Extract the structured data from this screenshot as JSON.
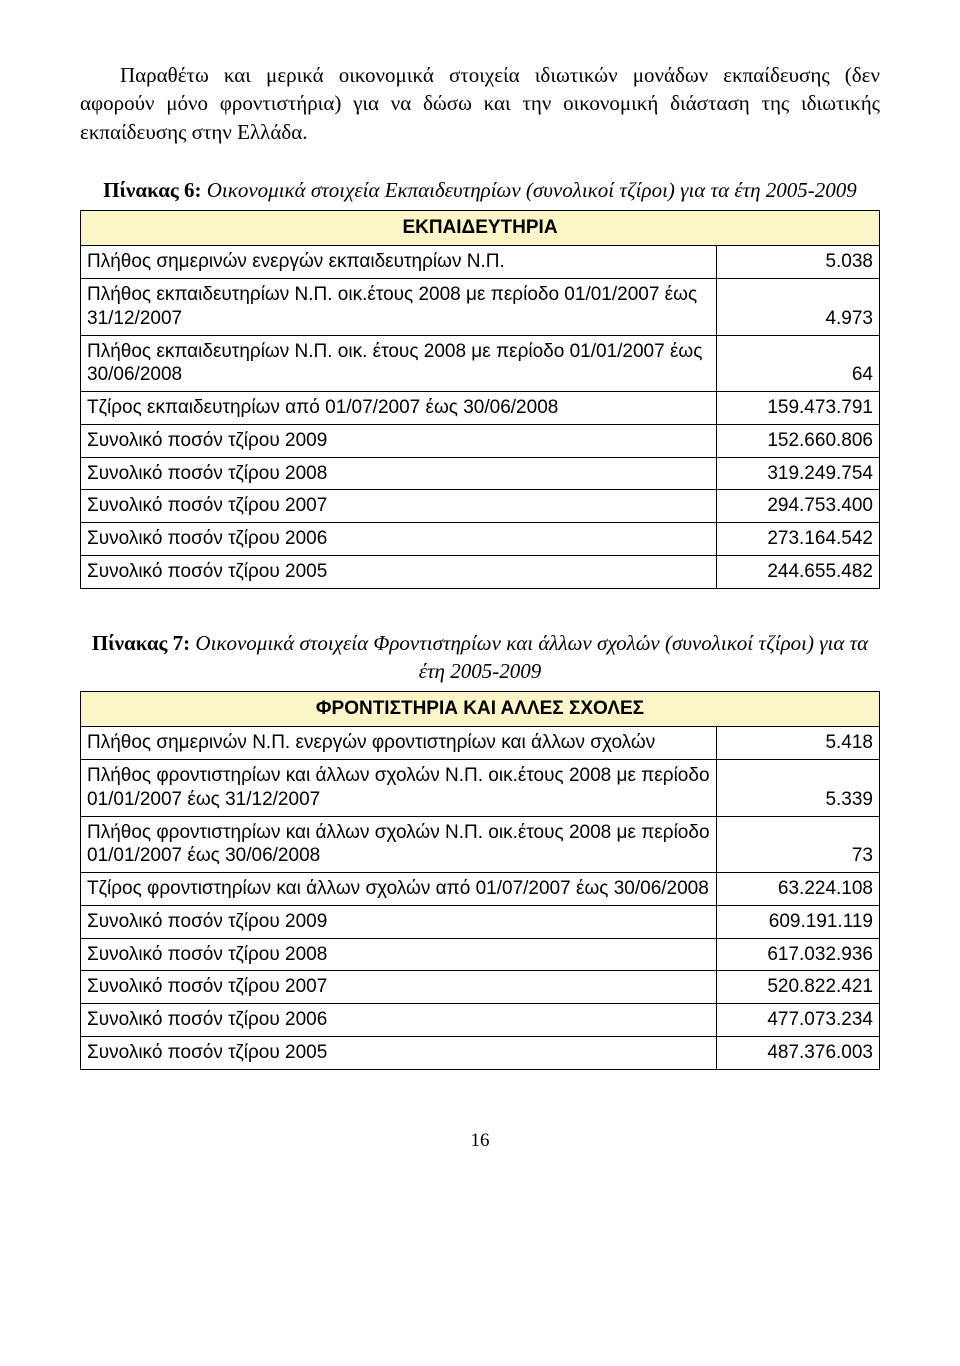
{
  "intro": "Παραθέτω και μερικά οικονομικά στοιχεία ιδιωτικών μονάδων εκπαίδευσης (δεν αφορούν μόνο φροντιστήρια) για να δώσω και την οικονομική διάσταση της ιδιωτικής εκπαίδευσης στην Ελλάδα.",
  "table6": {
    "caption_label": "Πίνακας 6:",
    "caption_rest": " Οικονομικά στοιχεία Εκπαιδευτηρίων (συνολικοί τζίροι) για τα έτη 2005-2009",
    "header": "ΕΚΠΑΙΔΕΥΤΗΡΙΑ",
    "header_bg": "#faf6c8",
    "rows": [
      {
        "label": "Πλήθος σημερινών ενεργών εκπαιδευτηρίων Ν.Π.",
        "value": "5.038"
      },
      {
        "label": "Πλήθος εκπαιδευτηρίων Ν.Π. οικ.έτους 2008 με περίοδο 01/01/2007 έως 31/12/2007",
        "value": "4.973"
      },
      {
        "label": "Πλήθος εκπαιδευτηρίων Ν.Π. οικ. έτους 2008 με περίοδο 01/01/2007 έως 30/06/2008",
        "value": "64"
      },
      {
        "label": "Τζίρος εκπαιδευτηρίων από 01/07/2007 έως 30/06/2008",
        "value": "159.473.791"
      },
      {
        "label": "Συνολικό ποσόν τζίρου 2009",
        "value": "152.660.806"
      },
      {
        "label": "Συνολικό ποσόν τζίρου 2008",
        "value": "319.249.754"
      },
      {
        "label": "Συνολικό ποσόν τζίρου 2007",
        "value": "294.753.400"
      },
      {
        "label": "Συνολικό ποσόν τζίρου 2006",
        "value": "273.164.542"
      },
      {
        "label": "Συνολικό ποσόν τζίρου 2005",
        "value": "244.655.482"
      }
    ]
  },
  "table7": {
    "caption_label": "Πίνακας 7:",
    "caption_rest": " Οικονομικά στοιχεία Φροντιστηρίων και άλλων σχολών (συνολικοί τζίροι) για τα έτη 2005-2009",
    "header": "ΦΡΟΝΤΙΣΤΗΡΙΑ ΚΑΙ ΑΛΛΕΣ ΣΧΟΛΕΣ",
    "header_bg": "#faf6c8",
    "rows": [
      {
        "label": "Πλήθος σημερινών Ν.Π. ενεργών φροντιστηρίων και άλλων σχολών",
        "value": "5.418"
      },
      {
        "label": "Πλήθος φροντιστηρίων και άλλων σχολών Ν.Π. οικ.έτους 2008 με περίοδο 01/01/2007 έως 31/12/2007",
        "value": "5.339"
      },
      {
        "label": "Πλήθος φροντιστηρίων και άλλων σχολών Ν.Π. οικ.έτους 2008 με περίοδο 01/01/2007 έως 30/06/2008",
        "value": "73"
      },
      {
        "label": "Τζίρος φροντιστηρίων και άλλων σχολών από 01/07/2007 έως 30/06/2008",
        "value": "63.224.108"
      },
      {
        "label": "Συνολικό ποσόν τζίρου 2009",
        "value": "609.191.119"
      },
      {
        "label": "Συνολικό ποσόν τζίρου 2008",
        "value": "617.032.936"
      },
      {
        "label": "Συνολικό ποσόν τζίρου 2007",
        "value": "520.822.421"
      },
      {
        "label": "Συνολικό ποσόν τζίρου 2006",
        "value": "477.073.234"
      },
      {
        "label": "Συνολικό ποσόν τζίρου 2005",
        "value": "487.376.003"
      }
    ]
  },
  "page_number": "16"
}
